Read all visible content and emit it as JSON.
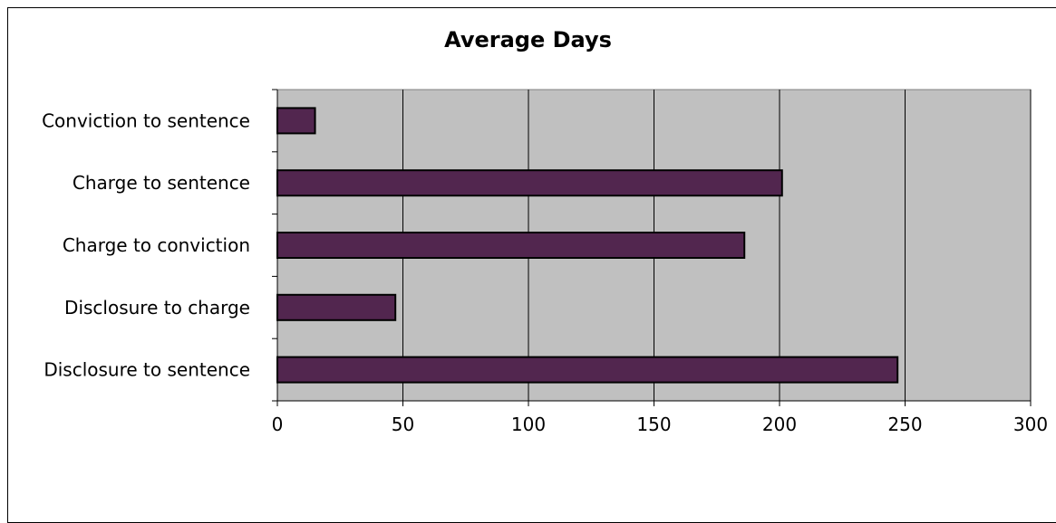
{
  "chart_data": {
    "type": "bar",
    "orientation": "horizontal",
    "title": "Average Days",
    "xlabel": "",
    "ylabel": "",
    "categories": [
      "Conviction to sentence",
      "Charge to sentence",
      "Charge to conviction",
      "Disclosure to charge",
      "Disclosure to sentence"
    ],
    "values": [
      15,
      201,
      186,
      47,
      247
    ],
    "xlim": [
      0,
      300
    ],
    "x_ticks": [
      0,
      50,
      100,
      150,
      200,
      250,
      300
    ],
    "grid": "vertical",
    "legend": "none",
    "colors": {
      "bar_fill": "#52264f",
      "bar_stroke": "#000000",
      "plot_background": "#c0c0c0",
      "grid_line": "#000000"
    }
  }
}
